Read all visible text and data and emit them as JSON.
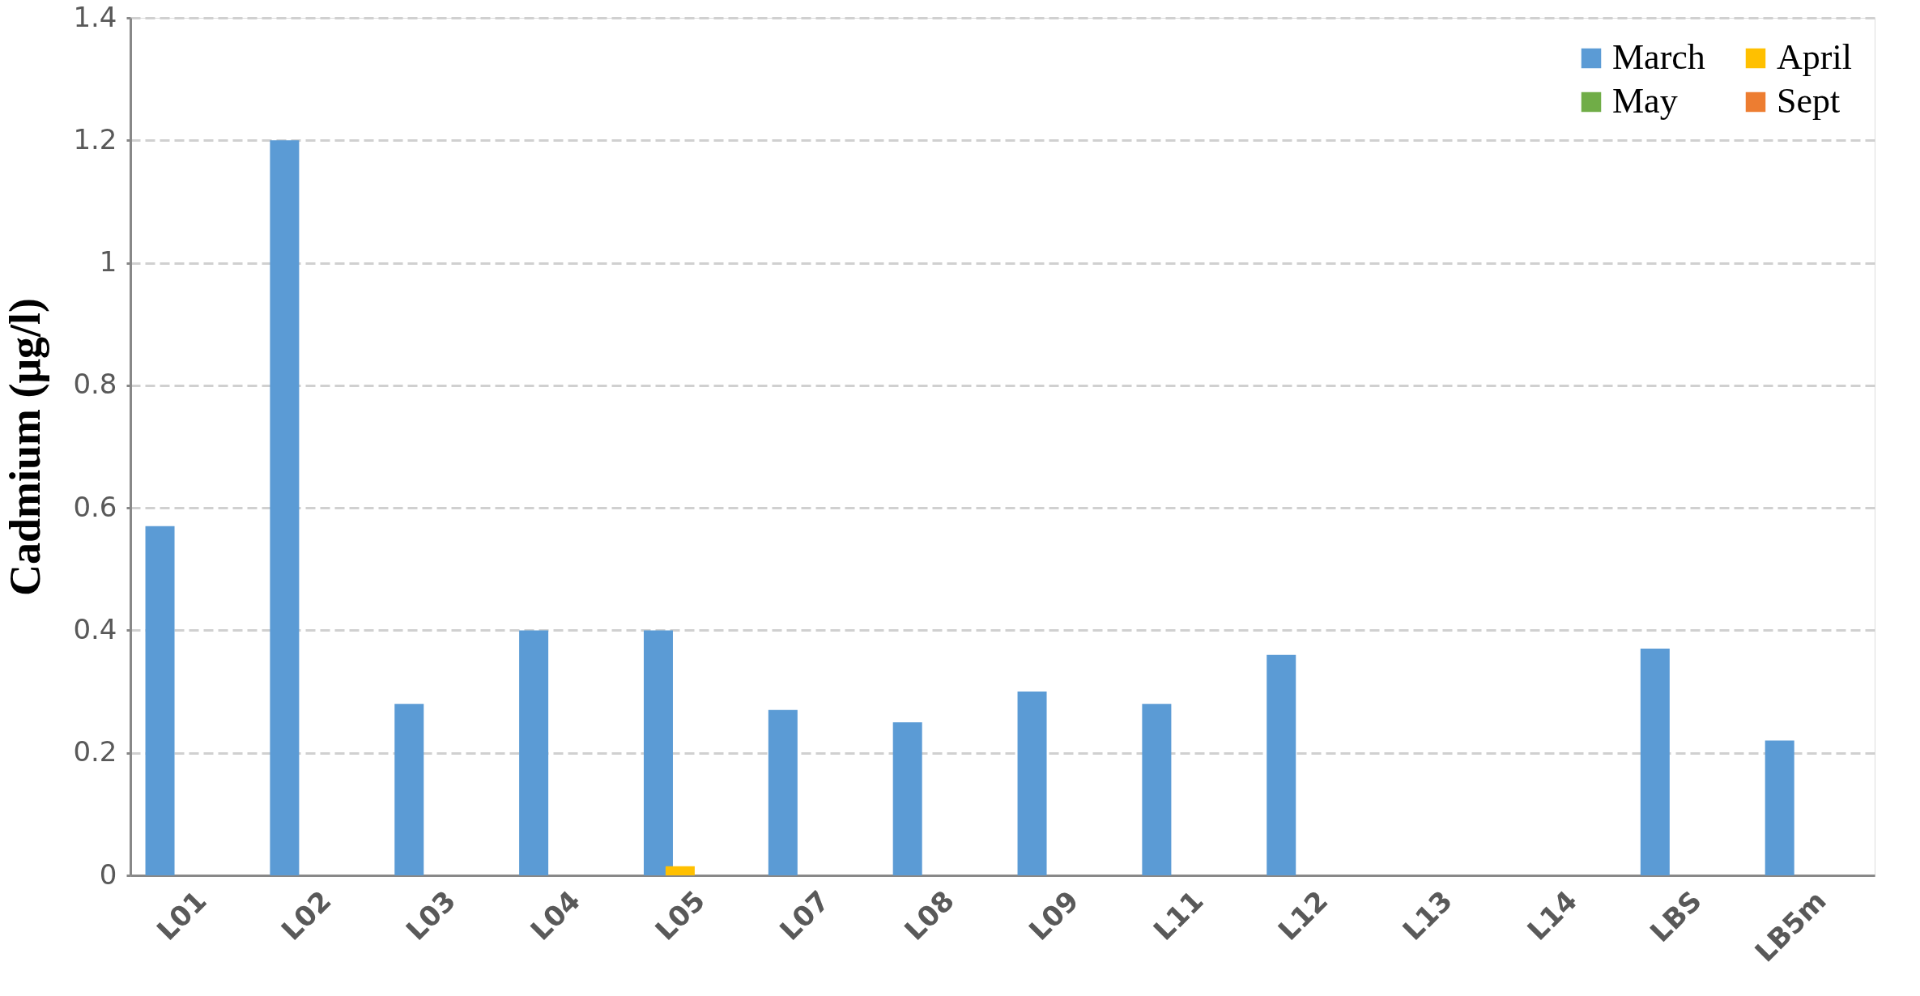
{
  "chart_data": {
    "type": "bar",
    "ylabel": "Cadmium (μg/l)",
    "categories": [
      "L01",
      "L02",
      "L03",
      "L04",
      "L05",
      "L07",
      "L08",
      "L09",
      "L11",
      "L12",
      "L13",
      "L14",
      "LBS",
      "LB5m"
    ],
    "series": [
      {
        "name": "March",
        "color": "#5b9bd5",
        "values": [
          0.57,
          1.2,
          0.28,
          0.4,
          0.4,
          0.27,
          0.25,
          0.3,
          0.28,
          0.36,
          null,
          null,
          0.37,
          0.22
        ]
      },
      {
        "name": "April",
        "color": "#ffc000",
        "values": [
          null,
          null,
          null,
          null,
          0.015,
          null,
          null,
          null,
          null,
          null,
          null,
          null,
          null,
          null
        ]
      },
      {
        "name": "May",
        "color": "#70ad47",
        "values": [
          null,
          null,
          null,
          null,
          null,
          null,
          null,
          null,
          null,
          null,
          null,
          null,
          null,
          null
        ]
      },
      {
        "name": "Sept",
        "color": "#ed7d31",
        "values": [
          null,
          null,
          null,
          null,
          null,
          null,
          null,
          null,
          null,
          null,
          null,
          null,
          null,
          null
        ]
      }
    ],
    "ylim": [
      0,
      1.4
    ],
    "yticks": [
      0,
      0.2,
      0.4,
      0.6,
      0.8,
      1,
      1.2,
      1.4
    ],
    "grid": "y",
    "legend": "top right"
  }
}
